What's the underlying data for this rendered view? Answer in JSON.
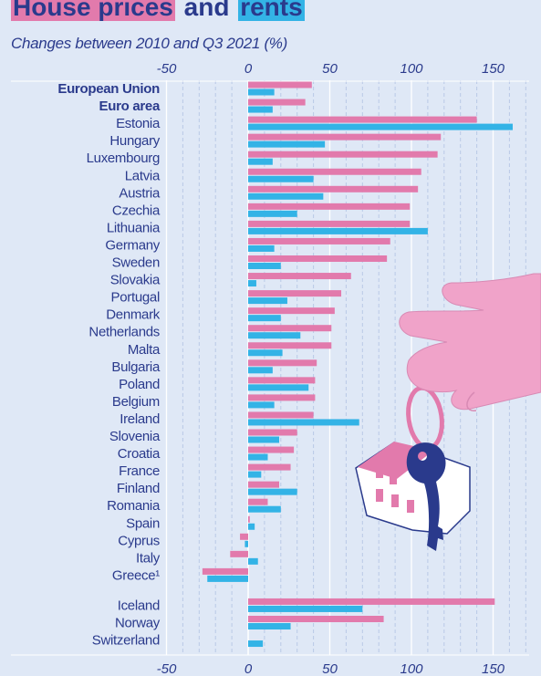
{
  "chart_data": {
    "type": "bar",
    "orientation": "horizontal",
    "title": {
      "part1": "House prices",
      "part2": "and",
      "part3": "rents"
    },
    "subtitle": "Changes between 2010 and Q3 2021 (%)",
    "xlim": [
      -50,
      170
    ],
    "xticks": [
      "-50",
      "0",
      "50",
      "100",
      "150"
    ],
    "grid": true,
    "colors": {
      "house_prices": "#e27aac",
      "rents": "#33b3e6",
      "text": "#2a3a8c"
    },
    "categories": [
      {
        "label": "European Union",
        "bold": true
      },
      {
        "label": "Euro area",
        "bold": true
      },
      {
        "label": "Estonia"
      },
      {
        "label": "Hungary"
      },
      {
        "label": "Luxembourg"
      },
      {
        "label": "Latvia"
      },
      {
        "label": "Austria"
      },
      {
        "label": "Czechia"
      },
      {
        "label": "Lithuania"
      },
      {
        "label": "Germany"
      },
      {
        "label": "Sweden"
      },
      {
        "label": "Slovakia"
      },
      {
        "label": "Portugal"
      },
      {
        "label": "Denmark"
      },
      {
        "label": "Netherlands"
      },
      {
        "label": "Malta"
      },
      {
        "label": "Bulgaria"
      },
      {
        "label": "Poland"
      },
      {
        "label": "Belgium"
      },
      {
        "label": "Ireland"
      },
      {
        "label": "Slovenia"
      },
      {
        "label": "Croatia"
      },
      {
        "label": "France"
      },
      {
        "label": "Finland"
      },
      {
        "label": "Romania"
      },
      {
        "label": "Spain"
      },
      {
        "label": "Cyprus"
      },
      {
        "label": "Italy"
      },
      {
        "label": "Greece¹"
      },
      {
        "label": "Iceland",
        "gap_before": true
      },
      {
        "label": "Norway"
      },
      {
        "label": "Switzerland"
      }
    ],
    "series": [
      {
        "key": "house_prices",
        "values": [
          39,
          35,
          140,
          118,
          116,
          106,
          104,
          99,
          99,
          87,
          85,
          63,
          57,
          53,
          51,
          51,
          42,
          41,
          41,
          40,
          30,
          28,
          26,
          19,
          12,
          1,
          -5,
          -11,
          -28,
          151,
          83,
          null
        ]
      },
      {
        "key": "rents",
        "values": [
          16,
          15,
          162,
          47,
          15,
          40,
          46,
          30,
          110,
          16,
          20,
          5,
          24,
          20,
          32,
          21,
          15,
          37,
          16,
          68,
          19,
          12,
          8,
          30,
          20,
          4,
          -2,
          6,
          -25,
          70,
          26,
          9
        ]
      }
    ]
  }
}
